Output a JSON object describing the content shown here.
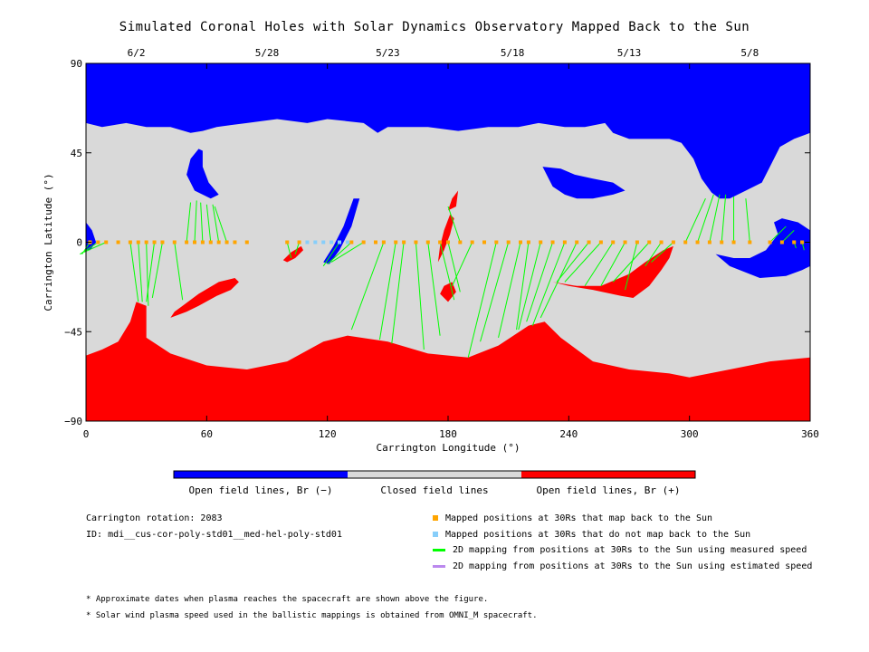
{
  "chart_data": {
    "type": "map",
    "title": "Simulated Coronal Holes with Solar Dynamics Observatory Mapped Back to the Sun",
    "xlabel": "Carrington Longitude (°)",
    "ylabel": "Carrington Latitude (°)",
    "xlim": [
      0,
      360
    ],
    "ylim": [
      -90,
      90
    ],
    "xticks": [
      0,
      60,
      120,
      180,
      240,
      300,
      360
    ],
    "yticks": [
      -90,
      -45,
      0,
      45,
      90
    ],
    "ytick_labels": [
      "−90",
      "−45",
      "0",
      "45",
      "90"
    ],
    "top_date_ticks": [
      {
        "lon": 25,
        "label": "6/2"
      },
      {
        "lon": 90,
        "label": "5/28"
      },
      {
        "lon": 150,
        "label": "5/23"
      },
      {
        "lon": 212,
        "label": "5/18"
      },
      {
        "lon": 270,
        "label": "5/13"
      },
      {
        "lon": 330,
        "label": "5/8"
      }
    ],
    "colors": {
      "negative": "#0000ff",
      "closed": "#d9d9d9",
      "positive": "#ff0000",
      "mapped": "#ffa500",
      "unmapped": "#87cefa",
      "measured": "#00ff00",
      "estimated": "#bb88ee"
    },
    "regions": {
      "north_negative": [
        [
          0,
          90
        ],
        [
          360,
          90
        ],
        [
          360,
          55
        ],
        [
          352,
          52
        ],
        [
          345,
          48
        ],
        [
          340,
          38
        ],
        [
          336,
          30
        ],
        [
          328,
          26
        ],
        [
          320,
          22
        ],
        [
          315,
          22
        ],
        [
          311,
          25
        ],
        [
          306,
          32
        ],
        [
          302,
          42
        ],
        [
          296,
          50
        ],
        [
          290,
          52
        ],
        [
          282,
          52
        ],
        [
          270,
          52
        ],
        [
          262,
          55
        ],
        [
          258,
          60
        ],
        [
          248,
          58
        ],
        [
          238,
          58
        ],
        [
          225,
          60
        ],
        [
          215,
          58
        ],
        [
          200,
          58
        ],
        [
          185,
          56
        ],
        [
          170,
          58
        ],
        [
          150,
          58
        ],
        [
          145,
          55
        ],
        [
          138,
          60
        ],
        [
          120,
          62
        ],
        [
          110,
          60
        ],
        [
          95,
          62
        ],
        [
          80,
          60
        ],
        [
          65,
          58
        ],
        [
          58,
          56
        ],
        [
          52,
          55
        ],
        [
          42,
          58
        ],
        [
          30,
          58
        ],
        [
          20,
          60
        ],
        [
          8,
          58
        ],
        [
          0,
          60
        ]
      ],
      "north_mid_hole": [
        [
          227,
          38
        ],
        [
          232,
          28
        ],
        [
          238,
          24
        ],
        [
          244,
          22
        ],
        [
          252,
          22
        ],
        [
          262,
          24
        ],
        [
          268,
          26
        ],
        [
          262,
          30
        ],
        [
          252,
          32
        ],
        [
          243,
          34
        ],
        [
          236,
          37
        ]
      ],
      "north_left_hole": [
        [
          52,
          42
        ],
        [
          56,
          47
        ],
        [
          58,
          46
        ],
        [
          58,
          38
        ],
        [
          61,
          30
        ],
        [
          66,
          24
        ],
        [
          62,
          22
        ],
        [
          54,
          26
        ],
        [
          50,
          34
        ]
      ],
      "left_blob": [
        [
          0,
          10
        ],
        [
          3,
          6
        ],
        [
          5,
          0
        ],
        [
          2,
          -4
        ],
        [
          0,
          -4
        ]
      ],
      "right_neg_hole": [
        [
          313,
          -6
        ],
        [
          320,
          -12
        ],
        [
          335,
          -18
        ],
        [
          348,
          -17
        ],
        [
          356,
          -14
        ],
        [
          360,
          -12
        ],
        [
          360,
          6
        ],
        [
          354,
          10
        ],
        [
          346,
          12
        ],
        [
          342,
          10
        ],
        [
          344,
          4
        ],
        [
          338,
          -4
        ],
        [
          330,
          -8
        ],
        [
          322,
          -8
        ]
      ],
      "thin_neg_channel": [
        [
          118,
          -10
        ],
        [
          121,
          -11
        ],
        [
          126,
          -4
        ],
        [
          132,
          8
        ],
        [
          136,
          22
        ],
        [
          133,
          22
        ],
        [
          128,
          8
        ],
        [
          123,
          -2
        ]
      ],
      "south_positive": [
        [
          0,
          -57
        ],
        [
          8,
          -54
        ],
        [
          16,
          -50
        ],
        [
          22,
          -40
        ],
        [
          25,
          -30
        ],
        [
          30,
          -32
        ],
        [
          30,
          -48
        ],
        [
          42,
          -56
        ],
        [
          60,
          -62
        ],
        [
          80,
          -64
        ],
        [
          100,
          -60
        ],
        [
          118,
          -50
        ],
        [
          130,
          -47
        ],
        [
          150,
          -50
        ],
        [
          170,
          -56
        ],
        [
          190,
          -58
        ],
        [
          205,
          -52
        ],
        [
          220,
          -42
        ],
        [
          228,
          -40
        ],
        [
          236,
          -48
        ],
        [
          252,
          -60
        ],
        [
          270,
          -64
        ],
        [
          290,
          -66
        ],
        [
          300,
          -68
        ],
        [
          320,
          -64
        ],
        [
          340,
          -60
        ],
        [
          360,
          -58
        ],
        [
          360,
          -90
        ],
        [
          0,
          -90
        ]
      ],
      "left_pos_spike": [
        [
          42,
          -38
        ],
        [
          50,
          -35
        ],
        [
          56,
          -32
        ],
        [
          65,
          -27
        ],
        [
          72,
          -24
        ],
        [
          76,
          -20
        ],
        [
          74,
          -18
        ],
        [
          66,
          -20
        ],
        [
          56,
          -26
        ],
        [
          48,
          -32
        ],
        [
          44,
          -35
        ]
      ],
      "pos_small_a": [
        [
          100,
          -10
        ],
        [
          104,
          -8
        ],
        [
          108,
          -4
        ],
        [
          107,
          -2
        ],
        [
          102,
          -5
        ],
        [
          98,
          -9
        ]
      ],
      "pos_center_b": [
        [
          176,
          -26
        ],
        [
          180,
          -30
        ],
        [
          184,
          -25
        ],
        [
          182,
          -20
        ],
        [
          178,
          -22
        ]
      ],
      "pos_center_c": [
        [
          182,
          22
        ],
        [
          185,
          26
        ],
        [
          184,
          18
        ],
        [
          180,
          16
        ]
      ],
      "pos_thin_d": [
        [
          175,
          -10
        ],
        [
          178,
          -4
        ],
        [
          181,
          4
        ],
        [
          183,
          12
        ],
        [
          181,
          14
        ],
        [
          178,
          6
        ],
        [
          176,
          -2
        ]
      ],
      "pos_right_e": [
        [
          232,
          -20
        ],
        [
          240,
          -22
        ],
        [
          252,
          -24
        ],
        [
          266,
          -27
        ],
        [
          272,
          -28
        ],
        [
          280,
          -22
        ],
        [
          286,
          -14
        ],
        [
          290,
          -8
        ],
        [
          292,
          -2
        ],
        [
          287,
          -4
        ],
        [
          278,
          -10
        ],
        [
          270,
          -16
        ],
        [
          256,
          -22
        ],
        [
          244,
          -22
        ]
      ]
    },
    "mapped_points": [
      [
        2,
        0
      ],
      [
        6,
        0
      ],
      [
        10,
        0
      ],
      [
        16,
        0
      ],
      [
        22,
        0
      ],
      [
        26,
        0
      ],
      [
        30,
        0
      ],
      [
        34,
        0
      ],
      [
        38,
        0
      ],
      [
        44,
        0
      ],
      [
        50,
        0
      ],
      [
        54,
        0
      ],
      [
        58,
        0
      ],
      [
        62,
        0
      ],
      [
        66,
        0
      ],
      [
        70,
        0
      ],
      [
        74,
        0
      ],
      [
        80,
        0
      ],
      [
        100,
        0
      ],
      [
        106,
        0
      ],
      [
        132,
        0
      ],
      [
        138,
        0
      ],
      [
        144,
        0
      ],
      [
        148,
        0
      ],
      [
        154,
        0
      ],
      [
        158,
        0
      ],
      [
        164,
        0
      ],
      [
        170,
        0
      ],
      [
        176,
        0
      ],
      [
        180,
        0
      ],
      [
        186,
        0
      ],
      [
        192,
        0
      ],
      [
        198,
        0
      ],
      [
        204,
        0
      ],
      [
        210,
        0
      ],
      [
        216,
        0
      ],
      [
        220,
        0
      ],
      [
        226,
        0
      ],
      [
        232,
        0
      ],
      [
        238,
        0
      ],
      [
        244,
        0
      ],
      [
        250,
        0
      ],
      [
        256,
        0
      ],
      [
        262,
        0
      ],
      [
        268,
        0
      ],
      [
        274,
        0
      ],
      [
        280,
        0
      ],
      [
        286,
        0
      ],
      [
        292,
        0
      ],
      [
        298,
        0
      ],
      [
        304,
        0
      ],
      [
        310,
        0
      ],
      [
        316,
        0
      ],
      [
        322,
        0
      ],
      [
        330,
        0
      ],
      [
        340,
        0
      ],
      [
        346,
        0
      ],
      [
        352,
        0
      ],
      [
        356,
        0
      ]
    ],
    "unmapped_points": [
      [
        110,
        0
      ],
      [
        114,
        0
      ],
      [
        118,
        0
      ],
      [
        122,
        0
      ],
      [
        126,
        0
      ],
      [
        130,
        0
      ]
    ],
    "measured_lines": [
      [
        2,
        0,
        -2,
        -6
      ],
      [
        6,
        0,
        -3,
        -6
      ],
      [
        10,
        0,
        -1,
        -5
      ],
      [
        22,
        0,
        26,
        -30
      ],
      [
        26,
        0,
        28,
        -30
      ],
      [
        30,
        0,
        31,
        -32
      ],
      [
        34,
        0,
        30,
        -30
      ],
      [
        38,
        0,
        33,
        -28
      ],
      [
        44,
        0,
        48,
        -29
      ],
      [
        50,
        0,
        52,
        20
      ],
      [
        54,
        0,
        55,
        21
      ],
      [
        58,
        0,
        57,
        20
      ],
      [
        62,
        0,
        60,
        19
      ],
      [
        66,
        0,
        63,
        19
      ],
      [
        70,
        0,
        64,
        18
      ],
      [
        100,
        0,
        102,
        -8
      ],
      [
        106,
        0,
        104,
        -6
      ],
      [
        126,
        0,
        118,
        -12
      ],
      [
        132,
        0,
        120,
        -11
      ],
      [
        138,
        0,
        122,
        -10
      ],
      [
        148,
        0,
        132,
        -44
      ],
      [
        154,
        0,
        146,
        -49
      ],
      [
        158,
        0,
        152,
        -51
      ],
      [
        164,
        0,
        168,
        -54
      ],
      [
        170,
        0,
        176,
        -47
      ],
      [
        176,
        0,
        183,
        -29
      ],
      [
        180,
        0,
        186,
        -25
      ],
      [
        186,
        0,
        180,
        18
      ],
      [
        192,
        0,
        182,
        -22
      ],
      [
        204,
        0,
        190,
        -58
      ],
      [
        210,
        0,
        196,
        -50
      ],
      [
        216,
        0,
        205,
        -48
      ],
      [
        220,
        0,
        214,
        -44
      ],
      [
        226,
        0,
        215,
        -44
      ],
      [
        232,
        0,
        219,
        -40
      ],
      [
        238,
        0,
        222,
        -42
      ],
      [
        244,
        0,
        226,
        -38
      ],
      [
        250,
        0,
        234,
        -20
      ],
      [
        256,
        0,
        238,
        -20
      ],
      [
        262,
        0,
        248,
        -22
      ],
      [
        268,
        0,
        256,
        -22
      ],
      [
        274,
        0,
        268,
        -24
      ],
      [
        280,
        0,
        262,
        -20
      ],
      [
        286,
        0,
        278,
        -12
      ],
      [
        292,
        0,
        281,
        -10
      ],
      [
        298,
        0,
        308,
        22
      ],
      [
        304,
        0,
        312,
        24
      ],
      [
        310,
        0,
        315,
        24
      ],
      [
        316,
        0,
        318,
        24
      ],
      [
        322,
        0,
        322,
        23
      ],
      [
        330,
        0,
        328,
        22
      ],
      [
        340,
        0,
        348,
        8
      ],
      [
        346,
        0,
        352,
        6
      ],
      [
        352,
        0,
        353,
        -3
      ],
      [
        356,
        0,
        357,
        -4
      ]
    ],
    "colorbar": [
      {
        "label": "Open field lines, Br (−)",
        "color": "#0000ff"
      },
      {
        "label": "Closed field lines",
        "color": "#d9d9d9"
      },
      {
        "label": "Open field lines, Br (+)",
        "color": "#ff0000"
      }
    ]
  },
  "info": {
    "rotation": "Carrington rotation: 2083",
    "id": "ID: mdi__cus-cor-poly-std01__med-hel-poly-std01"
  },
  "legend": [
    {
      "label": "Mapped positions at 30Rs that map back to the Sun",
      "kind": "square",
      "color": "#ffa500"
    },
    {
      "label": "Mapped positions at 30Rs that do not map back to the Sun",
      "kind": "square",
      "color": "#87cefa"
    },
    {
      "label": "2D mapping from positions at 30Rs to the Sun using measured speed",
      "kind": "line",
      "color": "#00ff00"
    },
    {
      "label": "2D mapping from positions at 30Rs to the Sun using estimated speed",
      "kind": "line",
      "color": "#bb88ee"
    }
  ],
  "notes": [
    "* Approximate dates when plasma reaches the spacecraft are shown above the figure.",
    "* Solar wind plasma speed used in the ballistic mappings is obtained from OMNI_M spacecraft."
  ]
}
